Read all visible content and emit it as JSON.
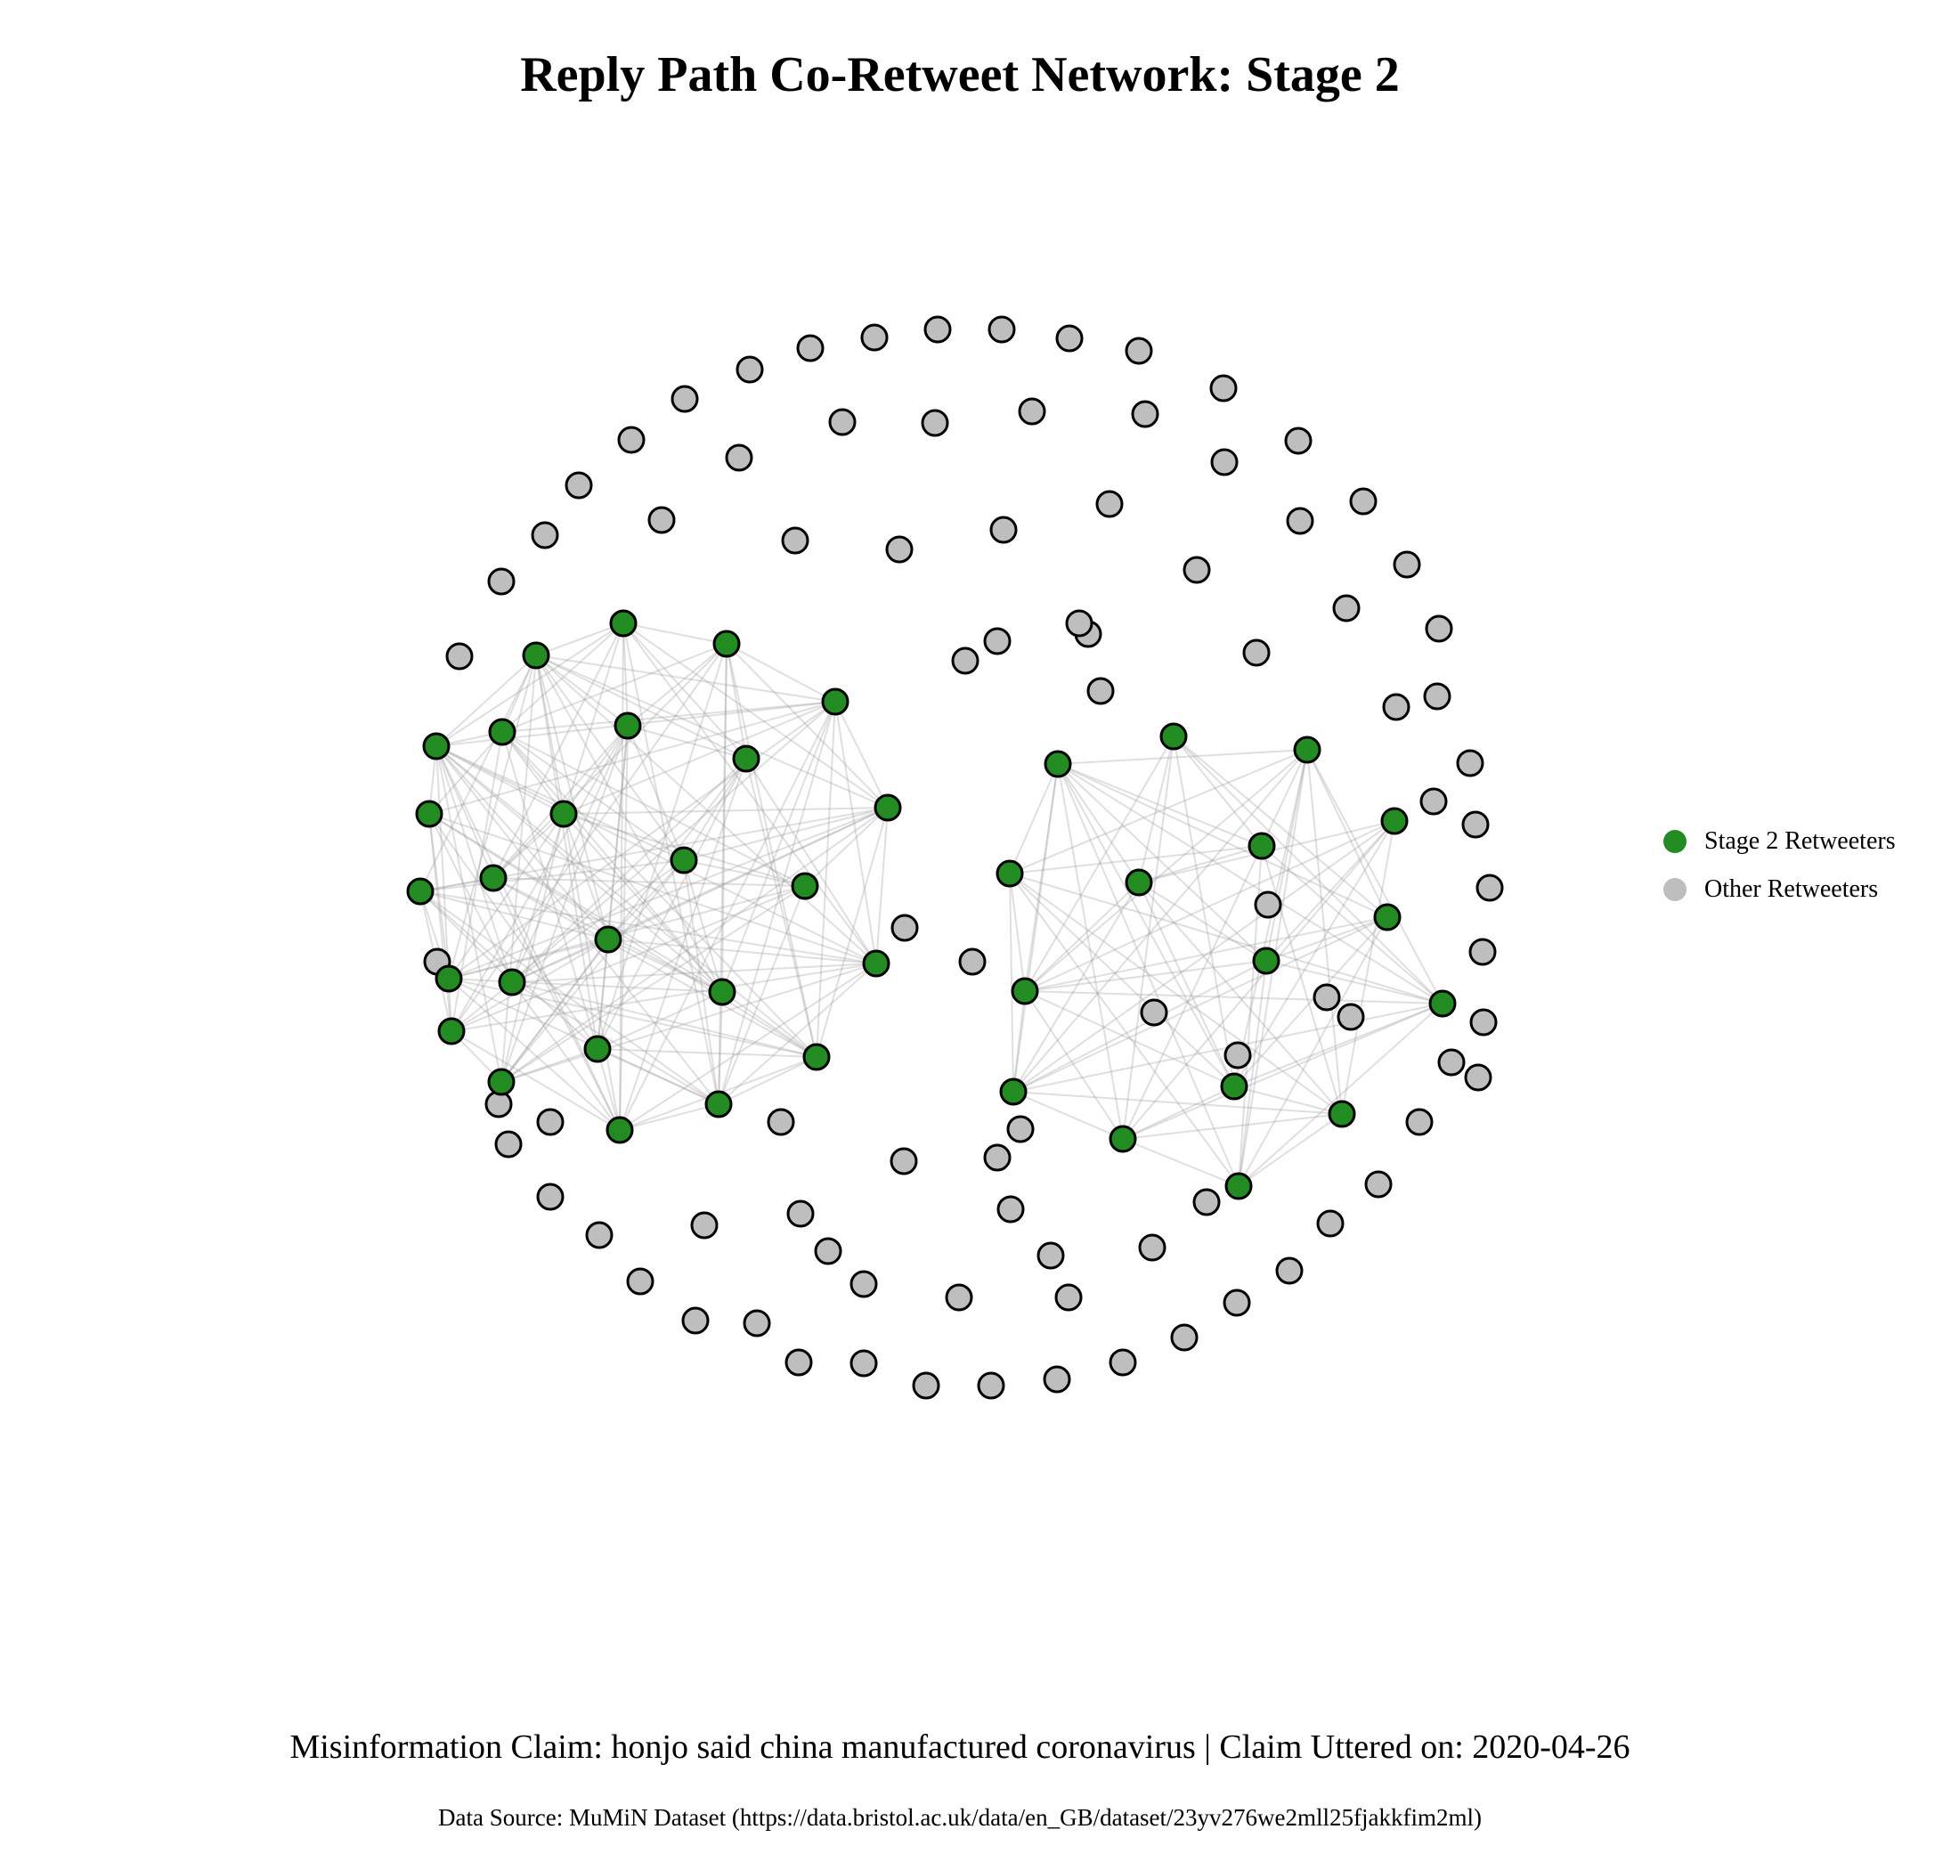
{
  "title": "Reply Path Co-Retweet Network: Stage 2",
  "legend": {
    "items": [
      {
        "label": "Stage 2 Retweeters",
        "color": "#228B22"
      },
      {
        "label": "Other Retweeters",
        "color": "#BEBEBE"
      }
    ]
  },
  "caption": "Misinformation Claim: honjo said china manufactured coronavirus | Claim Uttered on: 2020-04-26",
  "source": "Data Source: MuMiN Dataset (https://data.bristol.ac.uk/data/en_GB/dataset/23yv276we2mll25fjakkfim2ml)",
  "colors": {
    "stage2": "#228B22",
    "other": "#BEBEBE",
    "edge": "#9a9a9a",
    "outline": "#000000"
  },
  "network": {
    "stage2_count": 42,
    "other_count": 90,
    "clusters": [
      {
        "nodes": 26,
        "edge_density": 0.55
      },
      {
        "nodes": 16,
        "edge_density": 0.65
      }
    ]
  }
}
